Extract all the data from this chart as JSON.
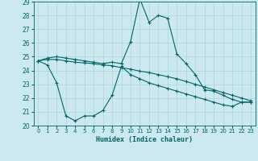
{
  "xlabel": "Humidex (Indice chaleur)",
  "bg_color": "#cce9ef",
  "grid_color": "#b0d8e0",
  "line_color": "#006666",
  "xlim": [
    -0.5,
    23.5
  ],
  "ylim": [
    20,
    29
  ],
  "xticks": [
    0,
    1,
    2,
    3,
    4,
    5,
    6,
    7,
    8,
    9,
    10,
    11,
    12,
    13,
    14,
    15,
    16,
    17,
    18,
    19,
    20,
    21,
    22,
    23
  ],
  "yticks": [
    20,
    21,
    22,
    23,
    24,
    25,
    26,
    27,
    28,
    29
  ],
  "line1_x": [
    0,
    1,
    2,
    3,
    4,
    5,
    6,
    7,
    8,
    9,
    10,
    11,
    12,
    13,
    14,
    15,
    16,
    17,
    18,
    19,
    20,
    21,
    22,
    23
  ],
  "line1_y": [
    24.7,
    24.9,
    25.0,
    24.9,
    24.8,
    24.7,
    24.6,
    24.5,
    24.6,
    24.5,
    26.1,
    29.2,
    27.5,
    28.0,
    27.8,
    25.2,
    24.5,
    23.7,
    22.6,
    22.5,
    22.2,
    21.9,
    21.7,
    21.7
  ],
  "line2_x": [
    0,
    1,
    2,
    3,
    4,
    5,
    6,
    7,
    8,
    9,
    10,
    11,
    12,
    13,
    14,
    15,
    16,
    17,
    18,
    19,
    20,
    21,
    22,
    23
  ],
  "line2_y": [
    24.7,
    24.8,
    24.8,
    24.7,
    24.6,
    24.55,
    24.5,
    24.4,
    24.35,
    24.2,
    24.1,
    23.95,
    23.85,
    23.7,
    23.55,
    23.4,
    23.2,
    23.0,
    22.8,
    22.6,
    22.4,
    22.2,
    22.0,
    21.8
  ],
  "line3_x": [
    0,
    1,
    2,
    3,
    4,
    5,
    6,
    7,
    8,
    9,
    10,
    11,
    12,
    13,
    14,
    15,
    16,
    17,
    18,
    19,
    20,
    21,
    22,
    23
  ],
  "line3_y": [
    24.7,
    24.4,
    23.1,
    20.7,
    20.35,
    20.7,
    20.7,
    21.1,
    22.2,
    24.3,
    23.7,
    23.4,
    23.1,
    22.9,
    22.7,
    22.5,
    22.3,
    22.1,
    21.9,
    21.7,
    21.5,
    21.4,
    21.7,
    21.7
  ]
}
